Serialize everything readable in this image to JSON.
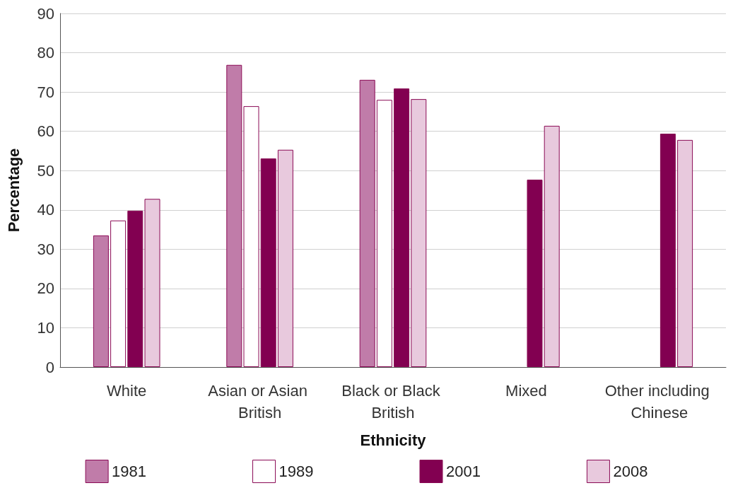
{
  "chart_data": {
    "type": "bar",
    "categories": [
      "White",
      "Asian or Asian British",
      "Black or Black British",
      "Mixed",
      "Other including Chinese"
    ],
    "series": [
      {
        "name": "1981",
        "color": "#c07ca9",
        "values": [
          33.5,
          76.9,
          73.1,
          null,
          null
        ]
      },
      {
        "name": "1989",
        "color": "#ffffff",
        "values": [
          37.3,
          66.4,
          68.0,
          null,
          null
        ]
      },
      {
        "name": "2001",
        "color": "#820051",
        "values": [
          39.8,
          53.1,
          70.9,
          47.7,
          59.4
        ]
      },
      {
        "name": "2008",
        "color": "#e8c9dd",
        "values": [
          42.8,
          55.3,
          68.2,
          61.4,
          57.8
        ]
      }
    ],
    "xlabel": "Ethnicity",
    "ylabel": "Percentage",
    "ylim": [
      0,
      90
    ],
    "yticks": [
      0,
      10,
      20,
      30,
      40,
      50,
      60,
      70,
      80,
      90
    ],
    "grid": "y",
    "legend": "bottom"
  }
}
